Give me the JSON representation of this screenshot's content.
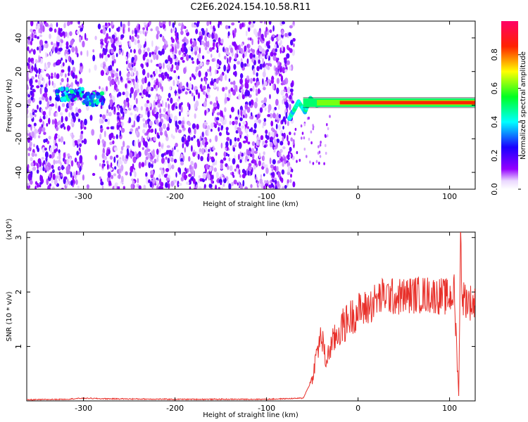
{
  "title": "C2E6.2024.154.10.58.R11",
  "chart_data": [
    {
      "type": "heatmap",
      "title": "C2E6.2024.154.10.58.R11",
      "xlabel": "Height of straight line (km)",
      "ylabel": "Frequency (Hz)",
      "xlim": [
        -362,
        128
      ],
      "ylim": [
        -50,
        50
      ],
      "xticks": [
        -300,
        -200,
        -100,
        0,
        100
      ],
      "yticks": [
        -40,
        -20,
        0,
        20,
        40
      ],
      "colorbar": {
        "label": "Normalized spectral amplitude",
        "range": [
          0.0,
          1.0
        ],
        "ticks": [
          0.0,
          0.2,
          0.4,
          0.6,
          0.8
        ],
        "colormap": [
          "#ffffff",
          "#9400ff",
          "#0000ff",
          "#00ffff",
          "#00ff00",
          "#ffff00",
          "#ff0000",
          "#ff0066"
        ]
      },
      "features": {
        "noise_band_km": [
          -362,
          -70
        ],
        "gap_km": [
          -300,
          -282
        ],
        "burst": {
          "x": [
            -330,
            -278
          ],
          "freq": [
            3,
            10
          ],
          "amplitude": 0.5
        },
        "tone": {
          "x": [
            -65,
            128
          ],
          "freq": 1.5,
          "amplitude": 0.85
        },
        "onset_curve": [
          [
            -75,
            -8
          ],
          [
            -70,
            -3
          ],
          [
            -65,
            2
          ],
          [
            -58,
            -4
          ],
          [
            -52,
            4
          ],
          [
            -45,
            0
          ],
          [
            -30,
            2
          ],
          [
            -10,
            1
          ]
        ]
      }
    },
    {
      "type": "line",
      "xlabel": "Height of straight line (km)",
      "ylabel": "SNR (10 * v/v)",
      "yscale_label": "(x10⁴)",
      "xlim": [
        -362,
        128
      ],
      "ylim": [
        0,
        3.1
      ],
      "xticks": [
        -300,
        -200,
        -100,
        0,
        100
      ],
      "yticks": [
        1,
        2,
        3
      ],
      "series": [
        {
          "color": "#e8302a",
          "x": [
            -362,
            -320,
            -300,
            -280,
            -200,
            -100,
            -60,
            -50,
            -45,
            -40,
            -35,
            -30,
            -20,
            -10,
            0,
            10,
            20,
            30,
            40,
            60,
            80,
            100,
            105,
            110,
            112,
            114,
            120,
            128
          ],
          "y": [
            0.02,
            0.03,
            0.05,
            0.04,
            0.03,
            0.03,
            0.05,
            0.4,
            0.9,
            1.2,
            0.7,
            1.0,
            1.3,
            1.5,
            1.65,
            1.7,
            1.85,
            1.95,
            1.9,
            1.95,
            1.95,
            1.9,
            2.0,
            0.1,
            3.0,
            1.9,
            1.85,
            1.75
          ]
        }
      ]
    }
  ]
}
